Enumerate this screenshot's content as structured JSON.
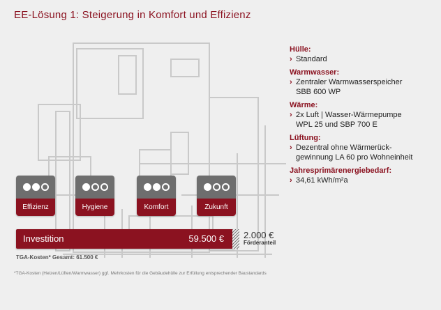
{
  "title": "EE-Lösung 1: Steigerung in Komfort und Effizienz",
  "specs": [
    {
      "heading": "Hülle:",
      "text": "Standard"
    },
    {
      "heading": "Warmwasser:",
      "text": "Zentraler Warmwasserspeicher\nSBB 600 WP"
    },
    {
      "heading": "Wärme:",
      "text": "2x Luft | Wasser-Wärmepumpe\nWPL 25 und SBP 700 E"
    },
    {
      "heading": "Lüftung:",
      "text": "Dezentral ohne Wärmerück-\ngewinnung LA 60 pro Wohneinheit"
    },
    {
      "heading": "Jahresprimärenergiebedarf:",
      "text": "34,61 kWh/m²a"
    }
  ],
  "badges": [
    {
      "label": "Effizienz",
      "level": 2,
      "max": 3
    },
    {
      "label": "Hygiene",
      "level": 1,
      "max": 3
    },
    {
      "label": "Komfort",
      "level": 2,
      "max": 3
    },
    {
      "label": "Zukunft",
      "level": 1,
      "max": 3
    }
  ],
  "investment": {
    "label": "Investition",
    "value": "59.500 €"
  },
  "foerder": {
    "amount": "2.000 €",
    "label": "Förderanteil"
  },
  "tga_total": "TGA-Kosten* Gesamt: 61.500 €",
  "footnote": "*TGA-Kosten (Heizen/Lüften/Warmwasser) ggf. Mehrkosten für die Gebäudehülle zur Erfüllung entsprechender Baustandards",
  "colors": {
    "accent": "#8b1220",
    "badge_top": "#6e6e6e",
    "background": "#efefef"
  }
}
